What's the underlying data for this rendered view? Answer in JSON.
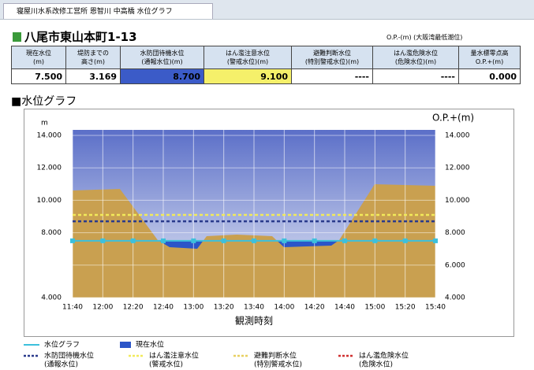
{
  "tab": {
    "title": "寝屋川水系改修工営所 恩智川 中高橋 水位グラフ"
  },
  "header": {
    "location": "八尾市東山本町1-13",
    "datum": "O.P.-(m) (大阪湾最低潮位)"
  },
  "table": {
    "headers": [
      [
        "現在水位",
        "(m)"
      ],
      [
        "堤防までの",
        "高さ(m)"
      ],
      [
        "水防団待機水位",
        "(通報水位)(m)"
      ],
      [
        "はん濫注意水位",
        "(警戒水位)(m)"
      ],
      [
        "避難判断水位",
        "(特別警戒水位)(m)"
      ],
      [
        "はん濫危険水位",
        "(危険水位)(m)"
      ],
      [
        "量水標零点高",
        "O.P.+(m)"
      ]
    ],
    "rows": [
      [
        "7.500",
        "3.169",
        "8.700",
        "9.100",
        "----",
        "----",
        "0.000"
      ]
    ]
  },
  "section_title": "■水位グラフ",
  "chart_data": {
    "type": "line",
    "y_label": "m",
    "y2_label": "O.P.+(m)",
    "x_label": "観測時刻",
    "categories": [
      "11:40",
      "12:00",
      "12:20",
      "12:40",
      "13:00",
      "13:20",
      "13:40",
      "14:00",
      "14:20",
      "14:40",
      "15:00",
      "15:20",
      "15:40"
    ],
    "series": [
      {
        "name": "水位グラフ",
        "color": "#3cc0dc",
        "values": [
          7.5,
          7.5,
          7.5,
          7.5,
          7.5,
          7.5,
          7.5,
          7.5,
          7.5,
          7.5,
          7.5,
          7.5,
          7.5
        ]
      }
    ],
    "current": {
      "name": "現在水位",
      "color": "#2b55c8"
    },
    "levels": [
      {
        "name": "水防団待機水位",
        "sub": "(通報水位)",
        "color": "#2a3a8c",
        "value": 8.7
      },
      {
        "name": "はん濫注意水位",
        "sub": "(警戒水位)",
        "color": "#f2ea5a",
        "value": 9.1
      },
      {
        "name": "避難判断水位",
        "sub": "(特別警戒水位)",
        "color": "#e8d060",
        "value": null
      },
      {
        "name": "はん濫危険水位",
        "sub": "(危険水位)",
        "color": "#d03030",
        "value": null
      }
    ],
    "ylim": [
      4,
      14
    ],
    "yticks": [
      {
        "value": 4,
        "label": "4.000"
      },
      {
        "value": 8,
        "label": "8.000"
      },
      {
        "value": 10,
        "label": "10.000"
      },
      {
        "value": 12,
        "label": "12.000"
      },
      {
        "value": 14,
        "label": "14.000"
      }
    ],
    "y2lim": [
      4,
      14
    ],
    "y2ticks": [
      {
        "value": 4,
        "label": "4.000"
      },
      {
        "value": 6,
        "label": "6.000"
      },
      {
        "value": 8,
        "label": "8.000"
      },
      {
        "value": 10,
        "label": "10.000"
      },
      {
        "value": 12,
        "label": "12.000"
      },
      {
        "value": 14,
        "label": "14.000"
      }
    ],
    "grid": true
  }
}
